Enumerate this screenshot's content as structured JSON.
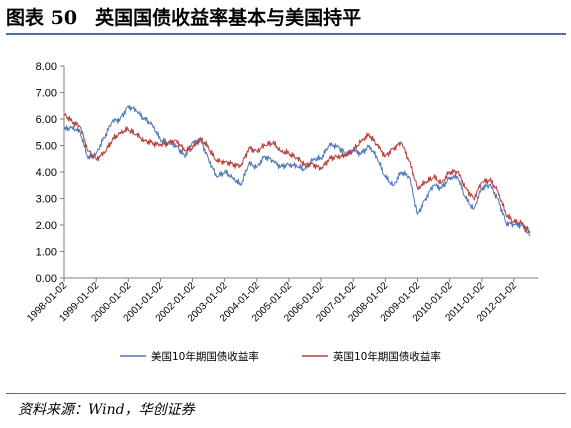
{
  "header": {
    "figure_number": "图表 50",
    "title": "英国国债收益率基本与美国持平"
  },
  "footer": {
    "source": "资料来源：Wind，华创证券"
  },
  "chart_data": {
    "type": "line",
    "ylim": [
      0,
      8
    ],
    "yticks": [
      "0.00",
      "1.00",
      "2.00",
      "3.00",
      "4.00",
      "5.00",
      "6.00",
      "7.00",
      "8.00"
    ],
    "xticks": [
      "1998-01-02",
      "1999-01-02",
      "2000-01-02",
      "2001-01-02",
      "2002-01-02",
      "2003-01-02",
      "2004-01-02",
      "2005-01-02",
      "2006-01-02",
      "2007-01-02",
      "2008-01-02",
      "2009-01-02",
      "2010-01-02",
      "2011-01-02",
      "2012-01-02"
    ],
    "x": [
      1998.0,
      1998.25,
      1998.5,
      1998.75,
      1999.0,
      1999.25,
      1999.5,
      1999.75,
      2000.0,
      2000.25,
      2000.5,
      2000.75,
      2001.0,
      2001.25,
      2001.5,
      2001.75,
      2002.0,
      2002.25,
      2002.5,
      2002.75,
      2003.0,
      2003.25,
      2003.5,
      2003.75,
      2004.0,
      2004.25,
      2004.5,
      2004.75,
      2005.0,
      2005.25,
      2005.5,
      2005.75,
      2006.0,
      2006.25,
      2006.5,
      2006.75,
      2007.0,
      2007.25,
      2007.5,
      2007.75,
      2008.0,
      2008.25,
      2008.5,
      2008.75,
      2009.0,
      2009.25,
      2009.5,
      2009.75,
      2010.0,
      2010.25,
      2010.5,
      2010.75,
      2011.0,
      2011.25,
      2011.5,
      2011.75,
      2012.0,
      2012.25,
      2012.5
    ],
    "grid": false,
    "legend_position": "bottom",
    "series": [
      {
        "name": "美国10年期国债收益率",
        "color": "#4f76b8",
        "values": [
          5.6,
          5.7,
          5.5,
          4.5,
          4.7,
          5.3,
          5.9,
          6.0,
          6.5,
          6.3,
          6.0,
          5.8,
          5.2,
          5.1,
          5.0,
          4.6,
          5.1,
          5.2,
          4.5,
          3.8,
          4.0,
          3.8,
          3.5,
          4.3,
          4.2,
          4.6,
          4.4,
          4.2,
          4.3,
          4.2,
          4.1,
          4.5,
          4.5,
          5.0,
          5.0,
          4.7,
          4.8,
          4.7,
          5.0,
          4.5,
          3.8,
          3.5,
          4.0,
          3.8,
          2.4,
          3.0,
          3.5,
          3.4,
          3.8,
          3.8,
          3.0,
          2.6,
          3.4,
          3.5,
          3.0,
          2.1,
          2.0,
          2.0,
          1.6
        ]
      },
      {
        "name": "英国10年期国债收益率",
        "color": "#b5413b",
        "values": [
          6.2,
          5.9,
          5.7,
          4.8,
          4.5,
          4.7,
          5.2,
          5.5,
          5.6,
          5.4,
          5.2,
          5.1,
          5.0,
          5.1,
          5.2,
          4.8,
          4.9,
          5.3,
          4.9,
          4.4,
          4.4,
          4.3,
          4.2,
          4.9,
          4.8,
          5.0,
          5.1,
          4.8,
          4.7,
          4.5,
          4.3,
          4.3,
          4.1,
          4.5,
          4.6,
          4.6,
          4.8,
          5.2,
          5.4,
          5.0,
          4.6,
          4.9,
          5.1,
          4.4,
          3.4,
          3.6,
          3.8,
          3.6,
          4.0,
          4.0,
          3.4,
          3.0,
          3.6,
          3.7,
          3.3,
          2.4,
          2.1,
          2.1,
          1.7
        ]
      }
    ]
  }
}
